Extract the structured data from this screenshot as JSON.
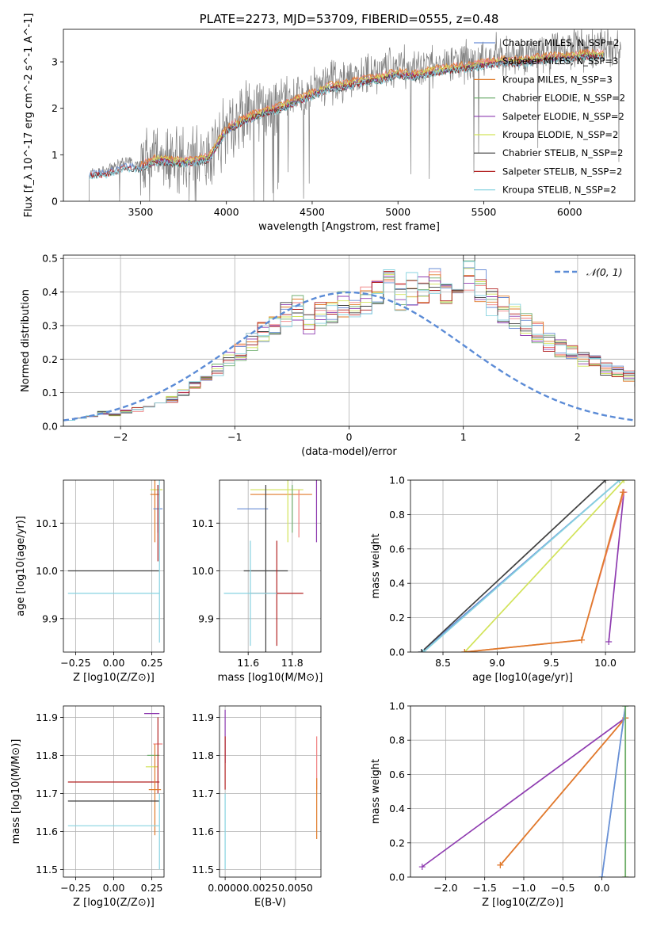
{
  "colors": {
    "chabrier_miles": "#6a8ed6",
    "salpeter_miles": "#f07f7f",
    "kroupa_miles": "#e07b2a",
    "chabrier_elodie": "#6fae6f",
    "salpeter_elodie": "#8e3bb0",
    "kroupa_elodie": "#d2e35a",
    "chabrier_stelib": "#404040",
    "salpeter_stelib": "#b22222",
    "kroupa_stelib": "#87d3e0",
    "spectrum": "#808080",
    "gauss": "#5b8bd6",
    "grid": "#b0b0b0"
  },
  "chart_data": [
    {
      "id": "spectrum",
      "type": "line",
      "title": "PLATE=2273, MJD=53709, FIBERID=0555, z=0.48",
      "xlabel": "wavelength [Angstrom, rest frame]",
      "ylabel": "Flux [f_λ 10^-17 erg cm^-2 s^-1 A^-1]",
      "xlim": [
        3050,
        6380
      ],
      "ylim": [
        0,
        3.7
      ],
      "xticks": [
        3500,
        4000,
        4500,
        5000,
        5500,
        6000
      ],
      "yticks": [
        0,
        1,
        2,
        3
      ],
      "legend_position": "top-right",
      "legend": [
        {
          "label": "Chabrier MILES, N_SSP=2",
          "color_key": "chabrier_miles"
        },
        {
          "label": "Salpeter MILES, N_SSP=3",
          "color_key": "salpeter_miles"
        },
        {
          "label": "Kroupa MILES, N_SSP=3",
          "color_key": "kroupa_miles"
        },
        {
          "label": "Chabrier ELODIE, N_SSP=2",
          "color_key": "chabrier_elodie"
        },
        {
          "label": "Salpeter ELODIE, N_SSP=2",
          "color_key": "salpeter_elodie"
        },
        {
          "label": "Kroupa ELODIE, N_SSP=2",
          "color_key": "kroupa_elodie"
        },
        {
          "label": "Chabrier STELIB, N_SSP=2",
          "color_key": "chabrier_stelib"
        },
        {
          "label": "Salpeter STELIB, N_SSP=2",
          "color_key": "salpeter_stelib"
        },
        {
          "label": "Kroupa STELIB, N_SSP=2",
          "color_key": "kroupa_stelib"
        }
      ],
      "observed_x": [
        3200,
        3300,
        3400,
        3500,
        3600,
        3700,
        3800,
        3900,
        4000,
        4100,
        4200,
        4300,
        4400,
        4500,
        4600,
        4700,
        4800,
        4900,
        5000,
        5100,
        5200,
        5300,
        5400,
        5500,
        5600,
        5700,
        5800,
        5900,
        6000,
        6100,
        6200,
        6300
      ],
      "observed_y": [
        0.6,
        0.65,
        0.85,
        0.8,
        1.0,
        0.95,
        0.9,
        1.0,
        1.6,
        1.8,
        2.0,
        2.1,
        2.25,
        2.4,
        2.55,
        2.6,
        2.75,
        2.8,
        2.9,
        2.85,
        2.9,
        3.0,
        3.0,
        3.1,
        3.15,
        3.1,
        3.2,
        3.25,
        3.25,
        3.3,
        3.35,
        3.3
      ],
      "model_x": [
        3200,
        3300,
        3400,
        3500,
        3600,
        3700,
        3800,
        3900,
        4000,
        4100,
        4200,
        4300,
        4400,
        4500,
        4600,
        4700,
        4800,
        4900,
        5000,
        5100,
        5200,
        5300,
        5400,
        5500,
        5600,
        5700,
        5800,
        5900,
        6000,
        6100,
        6200
      ],
      "model_y": [
        0.6,
        0.62,
        0.75,
        0.75,
        0.9,
        0.85,
        0.85,
        0.95,
        1.55,
        1.75,
        1.9,
        2.0,
        2.15,
        2.3,
        2.45,
        2.5,
        2.6,
        2.65,
        2.75,
        2.7,
        2.8,
        2.85,
        2.9,
        2.95,
        3.0,
        3.0,
        3.05,
        3.1,
        3.1,
        3.15,
        3.15
      ]
    },
    {
      "id": "residuals",
      "type": "line",
      "xlabel": "(data-model)/error",
      "ylabel": "Normed distribution",
      "xlim": [
        -2.5,
        2.5
      ],
      "ylim": [
        0,
        0.51
      ],
      "xticks": [
        -2,
        -1,
        0,
        1,
        2
      ],
      "yticks": [
        0.0,
        0.1,
        0.2,
        0.3,
        0.4,
        0.5
      ],
      "legend_position": "top-right",
      "legend": [
        {
          "label": "𝒩(0, 1)",
          "color_key": "gauss"
        }
      ],
      "bin_edges_start": -2.5,
      "bin_width": 0.1,
      "hist_values": [
        0.02,
        0.025,
        0.03,
        0.04,
        0.035,
        0.045,
        0.05,
        0.06,
        0.07,
        0.08,
        0.1,
        0.12,
        0.15,
        0.17,
        0.2,
        0.22,
        0.25,
        0.28,
        0.3,
        0.33,
        0.35,
        0.3,
        0.33,
        0.34,
        0.37,
        0.35,
        0.38,
        0.4,
        0.42,
        0.39,
        0.41,
        0.4,
        0.43,
        0.41,
        0.44,
        0.46,
        0.42,
        0.37,
        0.35,
        0.33,
        0.3,
        0.28,
        0.25,
        0.23,
        0.22,
        0.2,
        0.19,
        0.17,
        0.16,
        0.15,
        0.13,
        0.12,
        0.11,
        0.1,
        0.09,
        0.08,
        0.07,
        0.065,
        0.06,
        0.055,
        0.05,
        0.045,
        0.04,
        0.035,
        0.03,
        0.03,
        0.025,
        0.02,
        0.02,
        0.02
      ]
    },
    {
      "id": "age_vs_Z",
      "type": "scatter",
      "xlabel": "Z [log10(Z/Z⊙)]",
      "ylabel": "age  [log10(age/yr)]",
      "xlim": [
        -0.33,
        0.33
      ],
      "ylim": [
        9.83,
        10.19
      ],
      "xticks": [
        -0.25,
        0.0,
        0.25
      ],
      "yticks": [
        9.9,
        10.0,
        10.1
      ],
      "points": [
        {
          "x": 0.28,
          "y": 10.17,
          "xerr": 0.04,
          "yerr": 0.0,
          "color_key": "kroupa_elodie"
        },
        {
          "x": 0.27,
          "y": 10.16,
          "xerr": 0.03,
          "yerr": 0.1,
          "color_key": "kroupa_miles"
        },
        {
          "x": 0.29,
          "y": 10.13,
          "xerr": 0.03,
          "yerr": 0.05,
          "color_key": "chabrier_miles"
        },
        {
          "x": 0.0,
          "y": 10.0,
          "xerr": 0.3,
          "yerr": 0.0,
          "color_key": "chabrier_stelib"
        },
        {
          "x": 0.0,
          "y": 9.953,
          "xerr": 0.3,
          "yerr": 0.0,
          "color_key": "kroupa_stelib"
        },
        {
          "x": 0.29,
          "y": 10.1,
          "xerr": 0.0,
          "yerr": 0.08,
          "color_key": "salpeter_stelib"
        },
        {
          "x": 0.3,
          "y": 10.05,
          "xerr": 0.0,
          "yerr": 0.2,
          "color_key": "kroupa_stelib"
        }
      ]
    },
    {
      "id": "age_vs_mass",
      "type": "scatter",
      "xlabel": "mass [log10(M/M⊙)]",
      "ylabel": "",
      "xlim": [
        11.47,
        11.93
      ],
      "ylim": [
        9.83,
        10.19
      ],
      "xticks": [
        11.6,
        11.8
      ],
      "yticks": [
        9.9,
        10.0,
        10.1
      ],
      "points": [
        {
          "x": 11.73,
          "y": 10.17,
          "xerr": 0.12,
          "yerr": 0.0,
          "color_key": "kroupa_elodie"
        },
        {
          "x": 11.75,
          "y": 10.16,
          "xerr": 0.14,
          "yerr": 0.0,
          "color_key": "kroupa_miles"
        },
        {
          "x": 11.91,
          "y": 10.17,
          "xerr": 0.0,
          "yerr": 0.11,
          "color_key": "salpeter_elodie"
        },
        {
          "x": 11.62,
          "y": 10.13,
          "xerr": 0.07,
          "yerr": 0.0,
          "color_key": "chabrier_miles"
        },
        {
          "x": 11.68,
          "y": 10.0,
          "xerr": 0.1,
          "yerr": 0.18,
          "color_key": "chabrier_stelib"
        },
        {
          "x": 11.73,
          "y": 9.953,
          "xerr": 0.12,
          "yerr": 0.11,
          "color_key": "salpeter_stelib"
        },
        {
          "x": 11.61,
          "y": 9.953,
          "xerr": 0.12,
          "yerr": 0.11,
          "color_key": "kroupa_stelib"
        },
        {
          "x": 11.83,
          "y": 10.12,
          "xerr": 0.0,
          "yerr": 0.05,
          "color_key": "salpeter_miles"
        },
        {
          "x": 11.78,
          "y": 10.13,
          "xerr": 0.0,
          "yerr": 0.07,
          "color_key": "kroupa_elodie"
        },
        {
          "x": 11.8,
          "y": 10.13,
          "xerr": 0.0,
          "yerr": 0.05,
          "color_key": "chabrier_elodie"
        }
      ]
    },
    {
      "id": "mass_weight_vs_age",
      "type": "line",
      "xlabel": "age  [log10(age/yr)]",
      "ylabel": "mass weight",
      "xlim": [
        8.2,
        10.27
      ],
      "ylim": [
        0.0,
        1.0
      ],
      "xticks": [
        8.5,
        9.0,
        9.5,
        10.0
      ],
      "yticks": [
        0.0,
        0.2,
        0.4,
        0.6,
        0.8,
        1.0
      ],
      "series": [
        {
          "color_key": "chabrier_miles",
          "x": [
            8.3,
            10.13
          ],
          "y": [
            0.0,
            1.0
          ]
        },
        {
          "color_key": "chabrier_stelib",
          "x": [
            8.3,
            10.0
          ],
          "y": [
            0.0,
            1.0
          ]
        },
        {
          "color_key": "kroupa_stelib",
          "x": [
            8.32,
            10.13
          ],
          "y": [
            0.0,
            1.0
          ]
        },
        {
          "color_key": "kroupa_elodie",
          "x": [
            8.7,
            10.17
          ],
          "y": [
            0.0,
            1.0
          ]
        },
        {
          "color_key": "salpeter_elodie",
          "x": [
            10.03,
            10.17
          ],
          "y": [
            0.06,
            0.93
          ]
        },
        {
          "color_key": "salpeter_miles",
          "x": [
            8.7,
            9.78,
            10.17
          ],
          "y": [
            0.0,
            0.07,
            0.93
          ]
        },
        {
          "color_key": "kroupa_miles",
          "x": [
            8.7,
            9.78,
            10.16
          ],
          "y": [
            0.0,
            0.07,
            0.93
          ]
        }
      ]
    },
    {
      "id": "mass_vs_Z",
      "type": "scatter",
      "xlabel": "Z [log10(Z/Z⊙)]",
      "ylabel": "mass [log10(M/M⊙)]",
      "xlim": [
        -0.33,
        0.33
      ],
      "ylim": [
        11.48,
        11.93
      ],
      "xticks": [
        -0.25,
        0.0,
        0.25
      ],
      "yticks": [
        11.5,
        11.6,
        11.7,
        11.8,
        11.9
      ],
      "points": [
        {
          "x": 0.25,
          "y": 11.91,
          "xerr": 0.05,
          "yerr": 0.0,
          "color_key": "salpeter_elodie"
        },
        {
          "x": 0.29,
          "y": 11.83,
          "xerr": 0.03,
          "yerr": 0.0,
          "color_key": "salpeter_miles"
        },
        {
          "x": 0.26,
          "y": 11.8,
          "xerr": 0.04,
          "yerr": 0.0,
          "color_key": "chabrier_elodie"
        },
        {
          "x": 0.25,
          "y": 11.77,
          "xerr": 0.04,
          "yerr": 0.0,
          "color_key": "kroupa_elodie"
        },
        {
          "x": 0.29,
          "y": 11.8,
          "xerr": 0.0,
          "yerr": 0.1,
          "color_key": "salpeter_stelib"
        },
        {
          "x": 0.0,
          "y": 11.73,
          "xerr": 0.3,
          "yerr": 0.0,
          "color_key": "salpeter_stelib"
        },
        {
          "x": 0.27,
          "y": 11.71,
          "xerr": 0.04,
          "yerr": 0.12,
          "color_key": "kroupa_miles"
        },
        {
          "x": 0.0,
          "y": 11.68,
          "xerr": 0.3,
          "yerr": 0.0,
          "color_key": "chabrier_stelib"
        },
        {
          "x": 0.0,
          "y": 11.615,
          "xerr": 0.3,
          "yerr": 0.0,
          "color_key": "kroupa_stelib"
        },
        {
          "x": 0.3,
          "y": 11.6,
          "xerr": 0.0,
          "yerr": 0.1,
          "color_key": "kroupa_stelib"
        }
      ]
    },
    {
      "id": "mass_vs_ebv",
      "type": "scatter",
      "xlabel": "E(B-V)",
      "ylabel": "",
      "xlim": [
        -0.0004,
        0.0068
      ],
      "ylim": [
        11.48,
        11.93
      ],
      "xticks": [
        0.0,
        0.0025,
        0.005
      ],
      "xtick_labels": [
        "0.0000",
        "0.0025",
        "0.0050"
      ],
      "yticks": [
        11.5,
        11.6,
        11.7,
        11.8,
        11.9
      ],
      "points": [
        {
          "x": 0.0,
          "y": 11.85,
          "xerr": 0.0,
          "yerr": 0.07,
          "color_key": "salpeter_elodie"
        },
        {
          "x": 0.0,
          "y": 11.78,
          "xerr": 0.0,
          "yerr": 0.07,
          "color_key": "salpeter_stelib"
        },
        {
          "x": 0.0,
          "y": 11.6,
          "xerr": 0.0,
          "yerr": 0.1,
          "color_key": "kroupa_stelib"
        },
        {
          "x": 0.0065,
          "y": 11.78,
          "xerr": 0.0,
          "yerr": 0.07,
          "color_key": "salpeter_miles"
        },
        {
          "x": 0.0065,
          "y": 11.66,
          "xerr": 0.0,
          "yerr": 0.08,
          "color_key": "kroupa_miles"
        }
      ]
    },
    {
      "id": "mass_weight_vs_Z",
      "type": "line",
      "xlabel": "Z [log10(Z/Z⊙)]",
      "ylabel": "mass weight",
      "xlim": [
        -2.45,
        0.42
      ],
      "ylim": [
        0.0,
        1.0
      ],
      "xticks": [
        -2.0,
        -1.5,
        -1.0,
        -0.5,
        0.0
      ],
      "yticks": [
        0.0,
        0.2,
        0.4,
        0.6,
        0.8,
        1.0
      ],
      "series": [
        {
          "color_key": "salpeter_elodie",
          "x": [
            -2.3,
            0.3
          ],
          "y": [
            0.06,
            0.93
          ]
        },
        {
          "color_key": "salpeter_miles",
          "x": [
            -1.3,
            0.3
          ],
          "y": [
            0.07,
            0.93
          ]
        },
        {
          "color_key": "kroupa_miles",
          "x": [
            -1.3,
            0.3
          ],
          "y": [
            0.07,
            0.93
          ]
        },
        {
          "color_key": "kroupa_stelib",
          "x": [
            0.0,
            0.3
          ],
          "y": [
            0.0,
            1.0
          ]
        },
        {
          "color_key": "chabrier_miles",
          "x": [
            0.0,
            0.3
          ],
          "y": [
            0.0,
            1.0
          ]
        },
        {
          "color_key": "kroupa_elodie",
          "x": [
            0.3,
            0.3
          ],
          "y": [
            0.0,
            1.0
          ]
        },
        {
          "color_key": "chabrier_elodie",
          "x": [
            0.3,
            0.3
          ],
          "y": [
            0.0,
            1.0
          ]
        }
      ]
    }
  ]
}
